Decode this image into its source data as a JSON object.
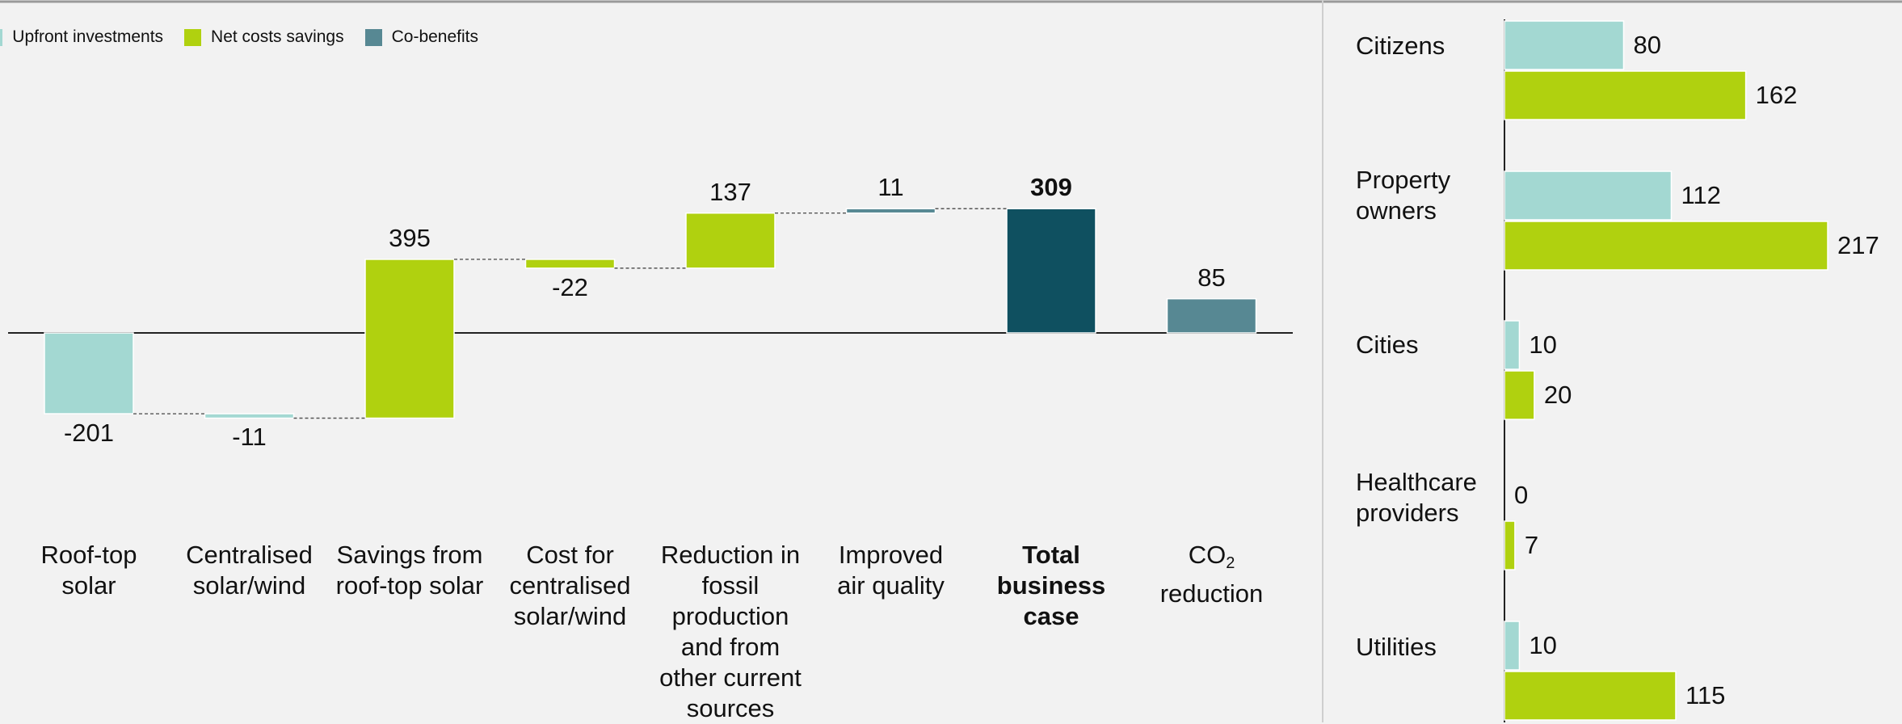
{
  "legend": [
    {
      "label": "Upfront investments",
      "color": "#a3d8d2"
    },
    {
      "label": "Net costs savings",
      "color": "#b0d10f"
    },
    {
      "label": "Co-benefits",
      "color": "#578893"
    }
  ],
  "colors": {
    "upfront": "#a3d8d2",
    "savings": "#b0d10f",
    "cobenefits": "#578893",
    "total": "#0f5060",
    "background": "#f2f2f2"
  },
  "chart_data": [
    {
      "type": "bar",
      "subtype": "waterfall",
      "title": "",
      "xlabel": "",
      "ylabel": "",
      "categories": [
        "Roof-top solar",
        "Centralised solar/wind",
        "Savings from roof-top solar",
        "Cost for centralised solar/wind",
        "Reduction in fossil production and from other current sources",
        "Improved air quality",
        "Total business case",
        "CO2 reduction"
      ],
      "category_lines": [
        "Roof-top\nsolar",
        "Centralised\nsolar/wind",
        "Savings from\nroof-top solar",
        "Cost for\ncentralised\nsolar/wind",
        "Reduction in\nfossil\nproduction\nand from\nother current\nsources",
        "Improved\nair quality",
        "Total\nbusiness\ncase",
        "CO"
      ],
      "co2_subscript": "2",
      "co2_second_line": "reduction",
      "values": [
        -201,
        -11,
        395,
        -22,
        137,
        11,
        309,
        85
      ],
      "value_labels": [
        "-201",
        "-11",
        "395",
        "-22",
        "137",
        "11",
        "309",
        "85"
      ],
      "bar_kind": [
        "upfront",
        "upfront",
        "savings",
        "savings",
        "savings",
        "cobenefits",
        "total",
        "cobenefits"
      ],
      "bar_mode": [
        "delta",
        "delta",
        "delta",
        "delta",
        "delta",
        "delta",
        "total",
        "standalone"
      ],
      "ylim": [
        -230,
        330
      ],
      "legend_position": "top-right"
    },
    {
      "type": "bar",
      "orientation": "horizontal",
      "title": "",
      "categories": [
        "Citizens",
        "Property owners",
        "Cities",
        "Healthcare providers",
        "Utilities"
      ],
      "category_lines": [
        "Citizens",
        "Property\nowners",
        "Cities",
        "Healthcare\nproviders",
        "Utilities"
      ],
      "series": [
        {
          "name": "Upfront investments",
          "values": [
            80,
            112,
            10,
            0,
            10
          ]
        },
        {
          "name": "Net costs savings",
          "values": [
            162,
            217,
            20,
            7,
            115
          ]
        }
      ],
      "series_colors": [
        "upfront",
        "savings"
      ],
      "xlim": [
        0,
        217
      ]
    }
  ]
}
